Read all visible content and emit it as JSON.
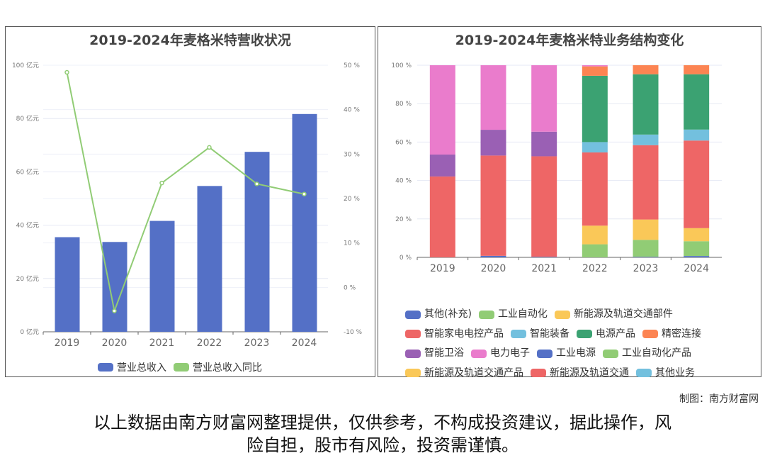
{
  "chart_data": [
    {
      "type": "bar+line",
      "title": "2019-2024年麦格米特营收状况",
      "categories": [
        "2019",
        "2020",
        "2021",
        "2022",
        "2023",
        "2024"
      ],
      "series": [
        {
          "name": "营业总收入",
          "type": "bar",
          "color": "#5470c6",
          "values": [
            35.5,
            33.7,
            41.6,
            54.7,
            67.5,
            81.7
          ]
        },
        {
          "name": "营业总收入同比",
          "type": "line",
          "color": "#91cc75",
          "values": [
            48.4,
            -5.3,
            23.5,
            31.5,
            23.3,
            21.0
          ]
        }
      ],
      "y_left": {
        "ticks": [
          "0 亿元",
          "20 亿元",
          "40 亿元",
          "60 亿元",
          "80 亿元",
          "100 亿元"
        ],
        "range": [
          0,
          100
        ]
      },
      "y_right": {
        "ticks": [
          "-10 %",
          "0 %",
          "10 %",
          "20 %",
          "30 %",
          "40 %",
          "50 %"
        ],
        "range": [
          -10,
          50
        ]
      },
      "legend": "bottom"
    },
    {
      "type": "stacked-bar",
      "title": "2019-2024年麦格米特业务结构变化",
      "categories": [
        "2019",
        "2020",
        "2021",
        "2022",
        "2023",
        "2024"
      ],
      "y_ticks": [
        "0 %",
        "20 %",
        "40 %",
        "60 %",
        "80 %",
        "100 %"
      ],
      "ylim": [
        0,
        100
      ],
      "series": [
        {
          "name": "其他(补充)",
          "color": "#5470c6",
          "values": [
            0,
            0.8,
            0.3,
            0,
            0.3,
            0.7
          ]
        },
        {
          "name": "工业自动化",
          "color": "#91cc75",
          "values": [
            0,
            0,
            0,
            6.8,
            8.8,
            7.7
          ]
        },
        {
          "name": "新能源及轨道交通部件",
          "color": "#fac858",
          "values": [
            0,
            0,
            0,
            9.7,
            10.6,
            6.8
          ]
        },
        {
          "name": "智能家电电控产品",
          "color": "#ee6666",
          "values": [
            42.1,
            52.2,
            52.3,
            38.1,
            38.7,
            45.6
          ]
        },
        {
          "name": "智能装备",
          "color": "#73c0de",
          "values": [
            0,
            0,
            0,
            5.4,
            5.5,
            5.7
          ]
        },
        {
          "name": "电源产品",
          "color": "#3ba272",
          "values": [
            0,
            0,
            0,
            34.5,
            31.4,
            28.8
          ]
        },
        {
          "name": "精密连接",
          "color": "#fc8452",
          "values": [
            0,
            0,
            0,
            4.9,
            4.7,
            4.7
          ]
        },
        {
          "name": "智能卫浴",
          "color": "#9a60b4",
          "values": [
            11.4,
            13.4,
            12.8,
            0,
            0,
            0
          ]
        },
        {
          "name": "电力电子",
          "color": "#ea7ccc",
          "values": [
            46.5,
            33.6,
            34.6,
            0.6,
            0,
            0
          ]
        },
        {
          "name": "工业电源",
          "color": "#5470c6",
          "values": [
            0,
            0,
            0,
            0,
            0,
            0
          ]
        },
        {
          "name": "工业自动化产品",
          "color": "#91cc75",
          "values": [
            0,
            0,
            0,
            0,
            0,
            0
          ]
        },
        {
          "name": "新能源及轨道交通产品",
          "color": "#fac858",
          "values": [
            0,
            0,
            0,
            0,
            0,
            0
          ]
        },
        {
          "name": "新能源及轨道交通",
          "color": "#ee6666",
          "values": [
            0,
            0,
            0,
            0,
            0,
            0
          ]
        },
        {
          "name": "其他业务",
          "color": "#73c0de",
          "values": [
            0,
            0,
            0,
            0,
            0,
            0
          ]
        }
      ],
      "legend": "bottom"
    }
  ],
  "credit": "制图：南方财富网",
  "disclaimer_line1": "以上数据由南方财富网整理提供，仅供参考，不构成投资建议，据此操作，风",
  "disclaimer_line2": "险自担，股市有风险，投资需谨慎。"
}
